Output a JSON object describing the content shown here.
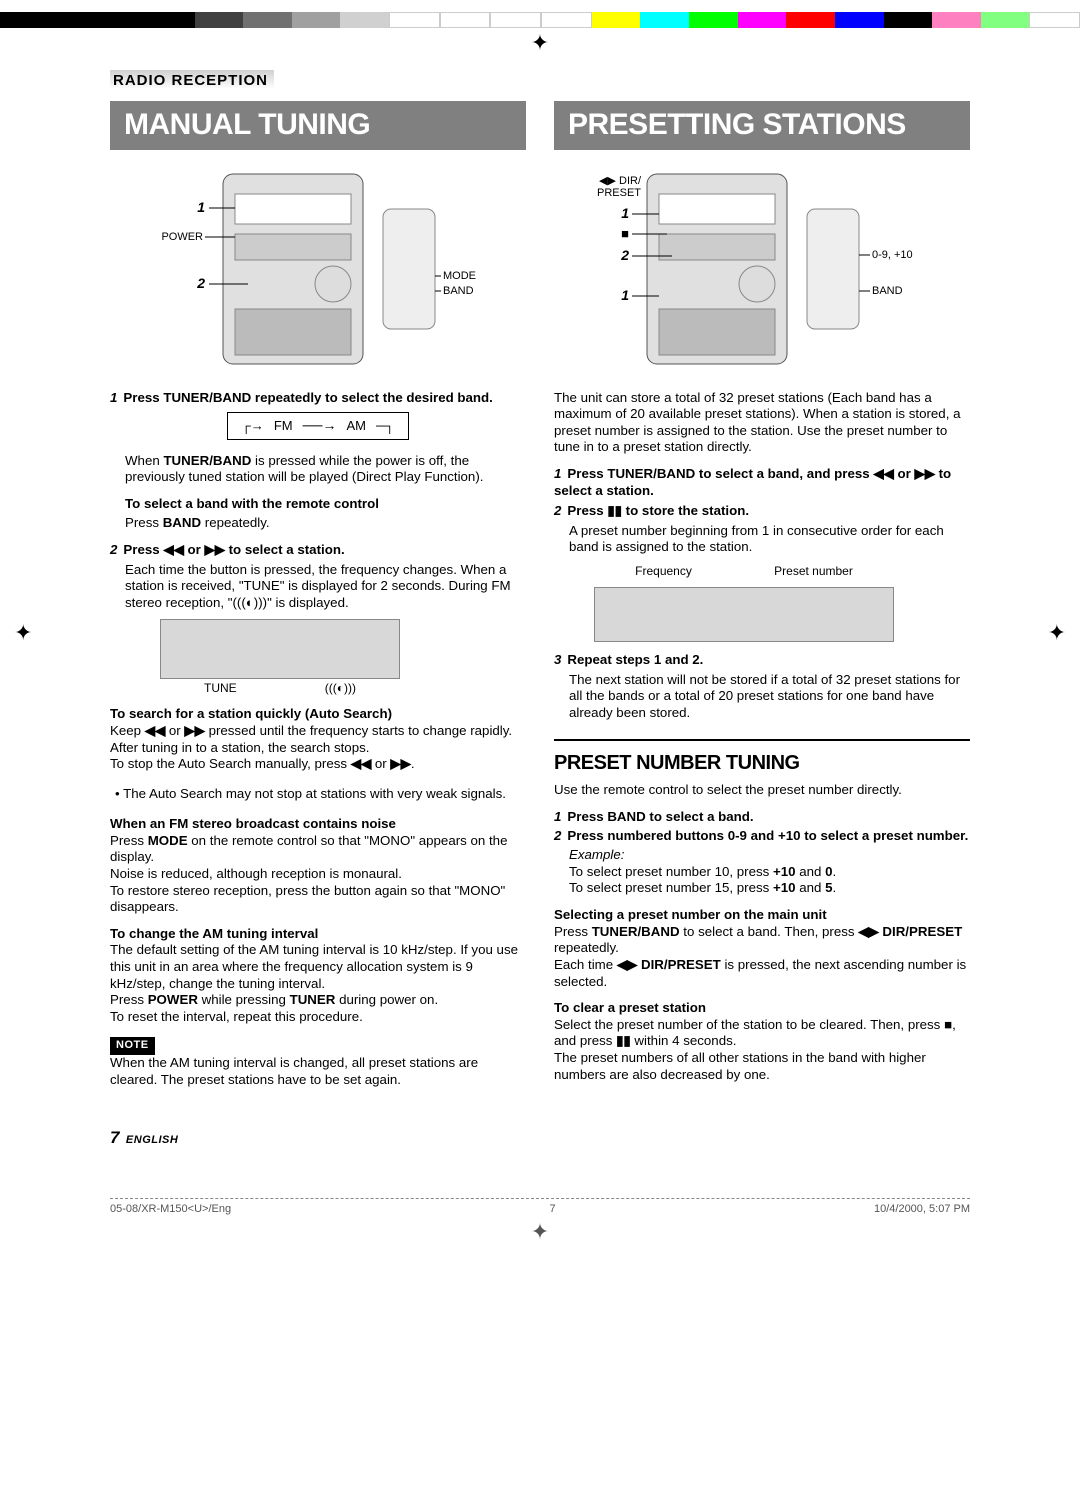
{
  "colorbar": [
    "#000000",
    "#000000",
    "#000000",
    "#000000",
    "#404040",
    "#707070",
    "#a0a0a0",
    "#d0d0d0",
    "#ffffff",
    "#ffffff",
    "#ffffff",
    "#ffffff",
    "#ffff00",
    "#00ffff",
    "#00ff00",
    "#ff00ff",
    "#ff0000",
    "#0000ff",
    "#000000",
    "#ff80c0",
    "#80ff80",
    "#ffffff"
  ],
  "header": {
    "section": "RADIO RECEPTION"
  },
  "left": {
    "title": "MANUAL TUNING",
    "diagram_labels": {
      "power": "POWER",
      "mode": "MODE",
      "band": "BAND",
      "n1": "1",
      "n2": "2"
    },
    "step1_head": "Press TUNER/BAND repeatedly to select the desired band.",
    "step1_num": "1",
    "fmam": {
      "fm": "FM",
      "am": "AM"
    },
    "step1_body_prefix": "When ",
    "step1_body_bold": "TUNER/BAND",
    "step1_body_suffix": " is pressed while the power is off, the previously tuned station will be played (Direct Play Function).",
    "remote_head": "To select a band with the remote control",
    "remote_body_prefix": "Press ",
    "remote_body_bold": "BAND",
    "remote_body_suffix": " repeatedly.",
    "step2_num": "2",
    "step2_head_a": "Press ",
    "step2_head_b": " or ",
    "step2_head_c": " to select a station.",
    "step2_body": "Each time the button is pressed, the frequency changes. When a station is received, \"TUNE\" is displayed for 2 seconds. During FM stereo reception, \"",
    "step2_body_suffix": "\" is displayed.",
    "display_caption_tune": "TUNE",
    "autosearch_head": "To search for a station quickly (Auto Search)",
    "autosearch_body1_a": "Keep ",
    "autosearch_body1_b": " or ",
    "autosearch_body1_c": " pressed until the frequency starts to change rapidly. After tuning in to a station, the search stops.",
    "autosearch_body2_a": "To stop the Auto Search manually, press ",
    "autosearch_body2_b": " or ",
    "autosearch_body2_c": ".",
    "autosearch_bullet": "The Auto Search may not stop at stations with very weak signals.",
    "fmnoise_head": "When an FM stereo broadcast contains noise",
    "fmnoise_body1_a": "Press ",
    "fmnoise_body1_bold": "MODE",
    "fmnoise_body1_b": " on the remote control so that \"MONO\" appears on the display.",
    "fmnoise_body2": "Noise is reduced, although reception is monaural.",
    "fmnoise_body3": "To restore stereo reception, press the button again so that \"MONO\" disappears.",
    "aminterval_head": "To change the AM tuning interval",
    "aminterval_body1": "The default setting of the AM tuning interval is 10 kHz/step. If you use this unit in an area where the frequency allocation system is 9 kHz/step, change the tuning interval.",
    "aminterval_body2_a": "Press ",
    "aminterval_body2_bold1": "POWER",
    "aminterval_body2_b": " while pressing ",
    "aminterval_body2_bold2": "TUNER",
    "aminterval_body2_c": " during power on.",
    "aminterval_body3": "To reset the interval, repeat this procedure.",
    "note_label": "NOTE",
    "note_body": "When the AM tuning interval is changed, all preset stations are cleared. The preset stations have to be set again."
  },
  "right": {
    "title": "PRESETTING STATIONS",
    "diagram_labels": {
      "dir": "DIR/",
      "preset": "PRESET",
      "band": "BAND",
      "num": "0-9, +10",
      "n1a": "1",
      "nstop": "■",
      "n2": "2",
      "n1b": "1"
    },
    "intro": "The unit can store a total of 32 preset stations (Each band has a maximum of 20 available preset stations). When a station is stored, a preset number is assigned to the station. Use the preset number to tune in to a preset station directly.",
    "s1_num": "1",
    "s1_head_a": "Press TUNER/BAND to select a band, and press ",
    "s1_head_b": " or ",
    "s1_head_c": " to select a station.",
    "s2_num": "2",
    "s2_head_a": "Press ",
    "s2_head_b": " to store the station.",
    "s2_body": "A preset number beginning from 1 in consecutive order for each band is assigned to the station.",
    "disp_freq": "Frequency",
    "disp_preset": "Preset number",
    "s3_num": "3",
    "s3_head": "Repeat steps 1 and 2.",
    "s3_body": "The next station will not be stored if a total of 32 preset stations for all the bands or a total of 20 preset stations for one band have already been stored.",
    "subsection_title": "PRESET NUMBER TUNING",
    "subsection_intro": "Use the remote control to select the preset number directly.",
    "p1_num": "1",
    "p1_head": "Press BAND to select a band.",
    "p2_num": "2",
    "p2_head": "Press numbered buttons 0-9 and +10 to select a preset number.",
    "p2_ex_label": "Example:",
    "p2_ex1_a": "To select preset number 10, press ",
    "p2_ex1_bold1": "+10",
    "p2_ex1_b": " and ",
    "p2_ex1_bold2": "0",
    "p2_ex1_c": ".",
    "p2_ex2_a": "To select preset number 15, press ",
    "p2_ex2_bold1": "+10",
    "p2_ex2_b": " and ",
    "p2_ex2_bold2": "5",
    "p2_ex2_c": ".",
    "sel_head": "Selecting a preset number on the main unit",
    "sel_body1_a": "Press ",
    "sel_body1_bold1": "TUNER/BAND",
    "sel_body1_b": " to select a band. Then, press ",
    "sel_body1_bold2": "DIR/PRESET",
    "sel_body1_c": " repeatedly.",
    "sel_body2_a": "Each time ",
    "sel_body2_bold": "DIR/PRESET",
    "sel_body2_b": " is pressed, the next ascending number is selected.",
    "clear_head": "To clear a preset station",
    "clear_body1": "Select the preset number of the station to be cleared. Then, press ",
    "clear_body1_b": ", and press ",
    "clear_body1_c": " within 4 seconds.",
    "clear_body2": "The preset numbers of all other stations in the band with higher numbers are also decreased by one."
  },
  "footer": {
    "pagenum": "7",
    "lang": "ENGLISH",
    "file": "05-08/XR-M150<U>/Eng",
    "fpage": "7",
    "date": "10/4/2000, 5:07 PM"
  },
  "icons": {
    "rew": "◀◀",
    "fwd": "▶▶",
    "pause": "▮▮",
    "stop": "■",
    "leftplay": "◀▶",
    "stereo": "(((◐)))"
  }
}
